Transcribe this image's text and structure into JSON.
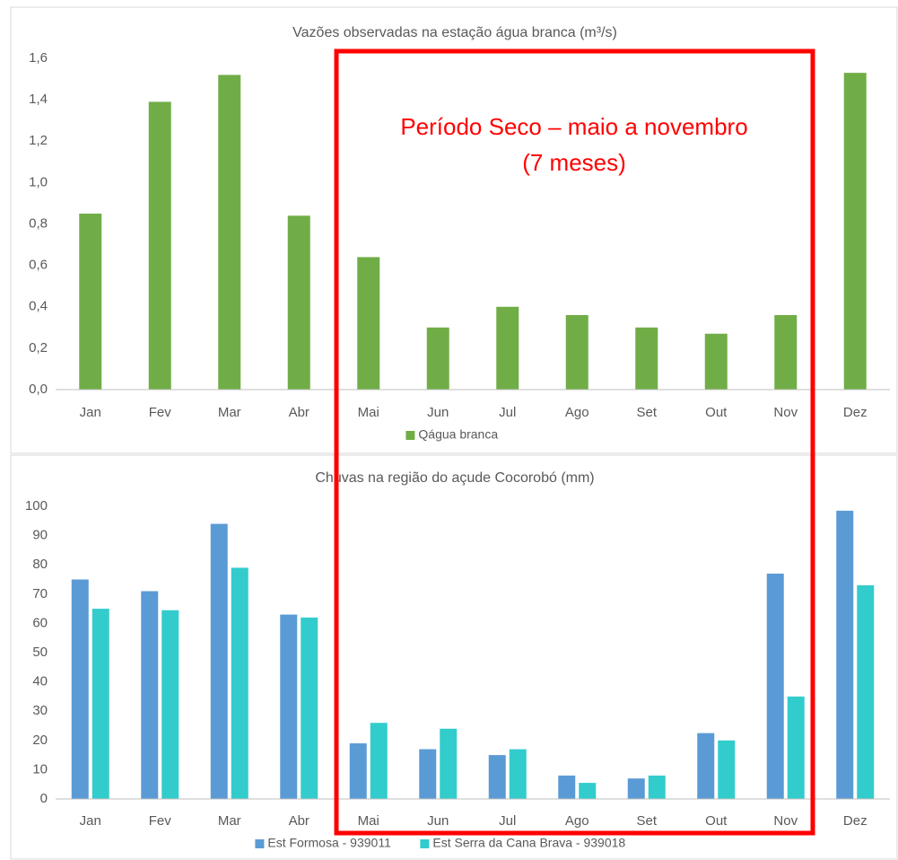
{
  "chart_data": [
    {
      "type": "bar",
      "title": "Vazões observadas na estação água branca (m³/s)",
      "categories": [
        "Jan",
        "Fev",
        "Mar",
        "Abr",
        "Mai",
        "Jun",
        "Jul",
        "Ago",
        "Set",
        "Out",
        "Nov",
        "Dez"
      ],
      "series": [
        {
          "name": "Qágua branca",
          "color": "#70ad47",
          "values": [
            0.85,
            1.39,
            1.52,
            0.84,
            0.64,
            0.3,
            0.4,
            0.36,
            0.3,
            0.27,
            0.36,
            1.53
          ]
        }
      ],
      "ylim": [
        0,
        1.6
      ],
      "yticks": [
        {
          "value": 0,
          "label": "0,0"
        },
        {
          "value": 0.2,
          "label": "0,2"
        },
        {
          "value": 0.4,
          "label": "0,4"
        },
        {
          "value": 0.6,
          "label": "0,6"
        },
        {
          "value": 0.8,
          "label": "0,8"
        },
        {
          "value": 1.0,
          "label": "1,0"
        },
        {
          "value": 1.2,
          "label": "1,2"
        },
        {
          "value": 1.4,
          "label": "1,4"
        },
        {
          "value": 1.6,
          "label": "1,6"
        }
      ],
      "grid": false,
      "legend": "bottom",
      "annotations": [
        "Período Seco – maio a novembro",
        "(7 meses)"
      ],
      "annotation_color": "#ff0000"
    },
    {
      "type": "bar",
      "title": "Chuvas na região do açude Cocorobó (mm)",
      "categories": [
        "Jan",
        "Fev",
        "Mar",
        "Abr",
        "Mai",
        "Jun",
        "Jul",
        "Ago",
        "Set",
        "Out",
        "Nov",
        "Dez"
      ],
      "series": [
        {
          "name": "Est Formosa - 939011",
          "color": "#5b9bd5",
          "values": [
            75,
            71,
            94,
            63,
            19,
            17,
            15,
            8,
            7,
            22.5,
            77,
            98.5
          ]
        },
        {
          "name": "Est Serra da Cana Brava - 939018",
          "color": "#33cccc",
          "values": [
            65,
            64.5,
            79,
            62,
            26,
            24,
            17,
            5.5,
            8,
            20,
            35,
            73
          ]
        }
      ],
      "ylim": [
        0,
        100
      ],
      "yticks": [
        0,
        10,
        20,
        30,
        40,
        50,
        60,
        70,
        80,
        90,
        100
      ],
      "grid": false,
      "legend": "bottom"
    }
  ]
}
